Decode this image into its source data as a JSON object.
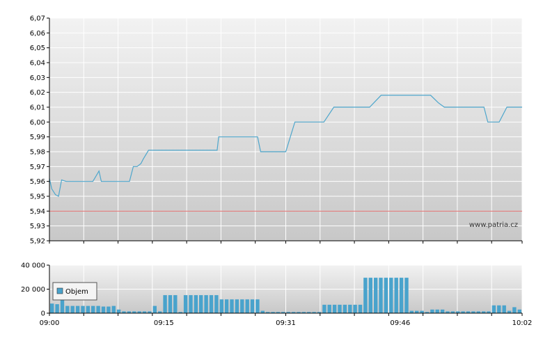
{
  "watermark": "www.patria.cz",
  "colors": {
    "price_line": "#4da6cc",
    "reference_line": "#e06b6b",
    "volume_bar": "#49a3cc",
    "grid": "#ffffff",
    "panel_top": "#f2f2f2",
    "panel_bottom": "#c8c8c8"
  },
  "chart_data": [
    {
      "type": "line",
      "panel": "price",
      "y_ticks": [
        "6,07",
        "6,06",
        "6,05",
        "6,04",
        "6,03",
        "6,02",
        "6,01",
        "6,00",
        "5,99",
        "5,98",
        "5,97",
        "5,96",
        "5,95",
        "5,94",
        "5,93",
        "5,92"
      ],
      "ylim": [
        5.92,
        6.07
      ],
      "x_range_minutes": [
        0,
        62
      ],
      "grid": true,
      "reference_value": 5.94,
      "series": [
        {
          "x": [
            0,
            0.3,
            0.8,
            1.2,
            1.6,
            2.2,
            4,
            5.7,
            6.5,
            6.8,
            7.2,
            8,
            9.5,
            10.5,
            11,
            11.5,
            12,
            12.3,
            13,
            14,
            16,
            18,
            20,
            21,
            22,
            22.2,
            24,
            26,
            27.3,
            27.7,
            29,
            29.3,
            31,
            32.2,
            32.7,
            33.2,
            34,
            36,
            37.3,
            38.5,
            40,
            40.5,
            41,
            41.3,
            42,
            43.5,
            44,
            45,
            46,
            47,
            48,
            49,
            50,
            51,
            51.8,
            52,
            52.5,
            53,
            54,
            55,
            56,
            56.5,
            57,
            57.5,
            58.5,
            59,
            60,
            61,
            61.5,
            62
          ],
          "y": [
            5.962,
            5.955,
            5.951,
            5.95,
            5.961,
            5.96,
            5.96,
            5.96,
            5.967,
            5.96,
            5.96,
            5.96,
            5.96,
            5.96,
            5.97,
            5.97,
            5.972,
            5.975,
            5.981,
            5.981,
            5.981,
            5.981,
            5.981,
            5.981,
            5.981,
            5.99,
            5.99,
            5.99,
            5.99,
            5.98,
            5.98,
            5.98,
            5.98,
            6.0,
            6.0,
            6.0,
            6.0,
            6.0,
            6.01,
            6.01,
            6.01,
            6.01,
            6.01,
            6.01,
            6.01,
            6.018,
            6.018,
            6.018,
            6.018,
            6.018,
            6.018,
            6.018,
            6.018,
            6.013,
            6.01,
            6.01,
            6.01,
            6.01,
            6.01,
            6.01,
            6.01,
            6.01,
            6.01,
            6.0,
            6.0,
            6.0,
            6.01,
            6.01,
            6.01,
            6.01
          ]
        }
      ]
    },
    {
      "type": "bar",
      "panel": "volume",
      "y_ticks": [
        "40 000",
        "20 000",
        "0"
      ],
      "ylim": [
        0,
        40000
      ],
      "x_ticks": [
        "09:00",
        "09:15",
        "09:31",
        "09:46",
        "10:02"
      ],
      "x_range_minutes": [
        0,
        62
      ],
      "grid": true,
      "legend_position": "left",
      "series": [
        {
          "name": "Objem",
          "values": [
            8000,
            7500,
            11500,
            6000,
            6000,
            6000,
            6000,
            6000,
            6000,
            6000,
            5500,
            5500,
            6000,
            3000,
            1500,
            1500,
            1500,
            1500,
            1500,
            1500,
            6000,
            1500,
            15000,
            15000,
            15000,
            1000,
            15000,
            15000,
            15000,
            15000,
            15000,
            15000,
            15000,
            11500,
            11500,
            11500,
            11500,
            11500,
            11500,
            11500,
            11500,
            2000,
            1000,
            1000,
            1000,
            1000,
            1000,
            1000,
            1000,
            1000,
            1000,
            1000,
            1000,
            7000,
            7000,
            7000,
            7000,
            7000,
            7000,
            7000,
            7000,
            29500,
            29500,
            29500,
            29500,
            29500,
            29500,
            29500,
            29500,
            29500,
            2000,
            2000,
            2000,
            1000,
            3000,
            3000,
            3000,
            1500,
            1500,
            1500,
            1500,
            1500,
            1500,
            1500,
            1500,
            1500,
            6500,
            6500,
            6500,
            2000,
            5000,
            3000
          ]
        }
      ]
    }
  ]
}
